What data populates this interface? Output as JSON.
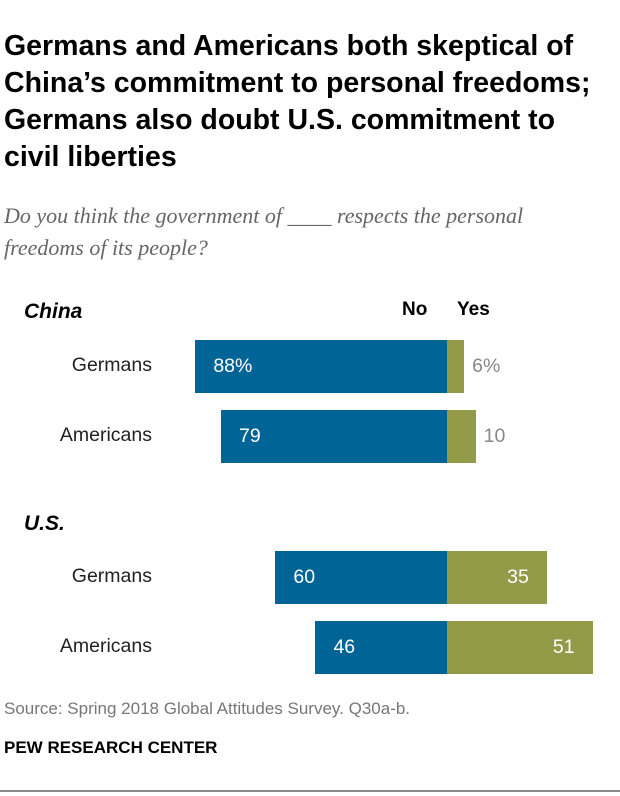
{
  "title": "Germans and Americans both skeptical of China’s commitment to personal freedoms; Germans also doubt U.S. commitment to civil liberties",
  "subtitle": "Do you think the government of ____ respects the personal freedoms of its people?",
  "source": "Source: Spring 2018 Global Attitudes Survey. Q30a-b.",
  "brand": "PEW RESEARCH CENTER",
  "colors": {
    "no": "#006496",
    "yes": "#949b48"
  },
  "chart_data": {
    "type": "bar",
    "orientation": "horizontal-diverging",
    "legend": [
      "No",
      "Yes"
    ],
    "groups": [
      {
        "name": "China",
        "rows": [
          {
            "label": "Germans",
            "no": 88,
            "yes": 6,
            "no_text": "88%",
            "yes_text": "6%"
          },
          {
            "label": "Americans",
            "no": 79,
            "yes": 10,
            "no_text": "79",
            "yes_text": "10"
          }
        ]
      },
      {
        "name": "U.S.",
        "rows": [
          {
            "label": "Germans",
            "no": 60,
            "yes": 35,
            "no_text": "60",
            "yes_text": "35"
          },
          {
            "label": "Americans",
            "no": 46,
            "yes": 51,
            "no_text": "46",
            "yes_text": "51"
          }
        ]
      }
    ]
  }
}
